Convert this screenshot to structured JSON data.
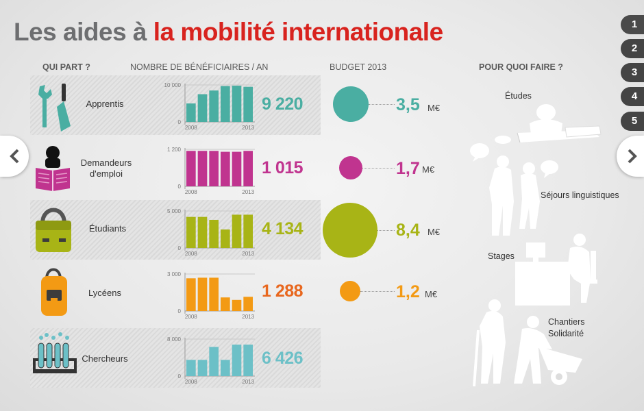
{
  "title": {
    "part1": "Les aides à ",
    "part2": "la mobilité internationale"
  },
  "headers": {
    "who": "QUI PART ?",
    "beneficiaries": "NOMBRE DE BÉNÉFICIAIRES / AN",
    "budget": "BUDGET 2013",
    "purpose": "POUR QUOI FAIRE ?"
  },
  "pagination": [
    "1",
    "2",
    "3",
    "4",
    "5"
  ],
  "purposes": {
    "etudes": "Études",
    "sejours": "Séjours linguistiques",
    "stages": "Stages",
    "chantiers": "Chantiers Solidarité"
  },
  "colors": {
    "apprentis": "#4aaea2",
    "demandeurs": "#c0348f",
    "etudiants": "#a8b416",
    "lyceens": "#f39a14",
    "lyceens_num": "#e8671e",
    "chercheurs": "#6cc0c7",
    "title_red": "#d8231e",
    "title_grey": "#6d6e70"
  },
  "chart_data": [
    {
      "type": "bar",
      "label": "Apprentis",
      "categories": [
        "2008",
        "2009",
        "2010",
        "2011",
        "2012",
        "2013"
      ],
      "values": [
        5000,
        7500,
        8500,
        9700,
        9800,
        9500
      ],
      "ylim": [
        0,
        10000
      ],
      "ytick_labels": [
        "0",
        "10 000"
      ],
      "xtick_labels": [
        "2008",
        "2013"
      ],
      "total": "9 220",
      "budget": "3,5",
      "budget_unit": "M€"
    },
    {
      "type": "bar",
      "label": "Demandeurs d'emploi",
      "categories": [
        "2008",
        "2009",
        "2010",
        "2011",
        "2012",
        "2013"
      ],
      "values": [
        1150,
        1150,
        1150,
        1120,
        1120,
        1150
      ],
      "ylim": [
        0,
        1200
      ],
      "ytick_labels": [
        "0",
        "1 200"
      ],
      "xtick_labels": [
        "2008",
        "2013"
      ],
      "total": "1 015",
      "budget": "1,7",
      "budget_unit": "M€"
    },
    {
      "type": "bar",
      "label": "Étudiants",
      "categories": [
        "2008",
        "2009",
        "2010",
        "2011",
        "2012",
        "2013"
      ],
      "values": [
        4200,
        4200,
        3800,
        2500,
        4500,
        4500
      ],
      "ylim": [
        0,
        5000
      ],
      "ytick_labels": [
        "0",
        "5 000"
      ],
      "xtick_labels": [
        "2008",
        "2013"
      ],
      "total": "4 134",
      "budget": "8,4",
      "budget_unit": "M€"
    },
    {
      "type": "bar",
      "label": "Lycéens",
      "categories": [
        "2008",
        "2009",
        "2010",
        "2011",
        "2012",
        "2013"
      ],
      "values": [
        2650,
        2700,
        2700,
        1100,
        900,
        1150
      ],
      "ylim": [
        0,
        3000
      ],
      "ytick_labels": [
        "0",
        "3 000"
      ],
      "xtick_labels": [
        "2008",
        "2013"
      ],
      "total": "1 288",
      "budget": "1,2",
      "budget_unit": "M€"
    },
    {
      "type": "bar",
      "label": "Chercheurs",
      "categories": [
        "2008",
        "2009",
        "2010",
        "2011",
        "2012",
        "2013"
      ],
      "values": [
        3500,
        3500,
        6300,
        3500,
        6800,
        6800
      ],
      "ylim": [
        0,
        8000
      ],
      "ytick_labels": [
        "0",
        "8 000"
      ],
      "xtick_labels": [
        "2008",
        "2013"
      ],
      "total": "6 426"
    }
  ]
}
